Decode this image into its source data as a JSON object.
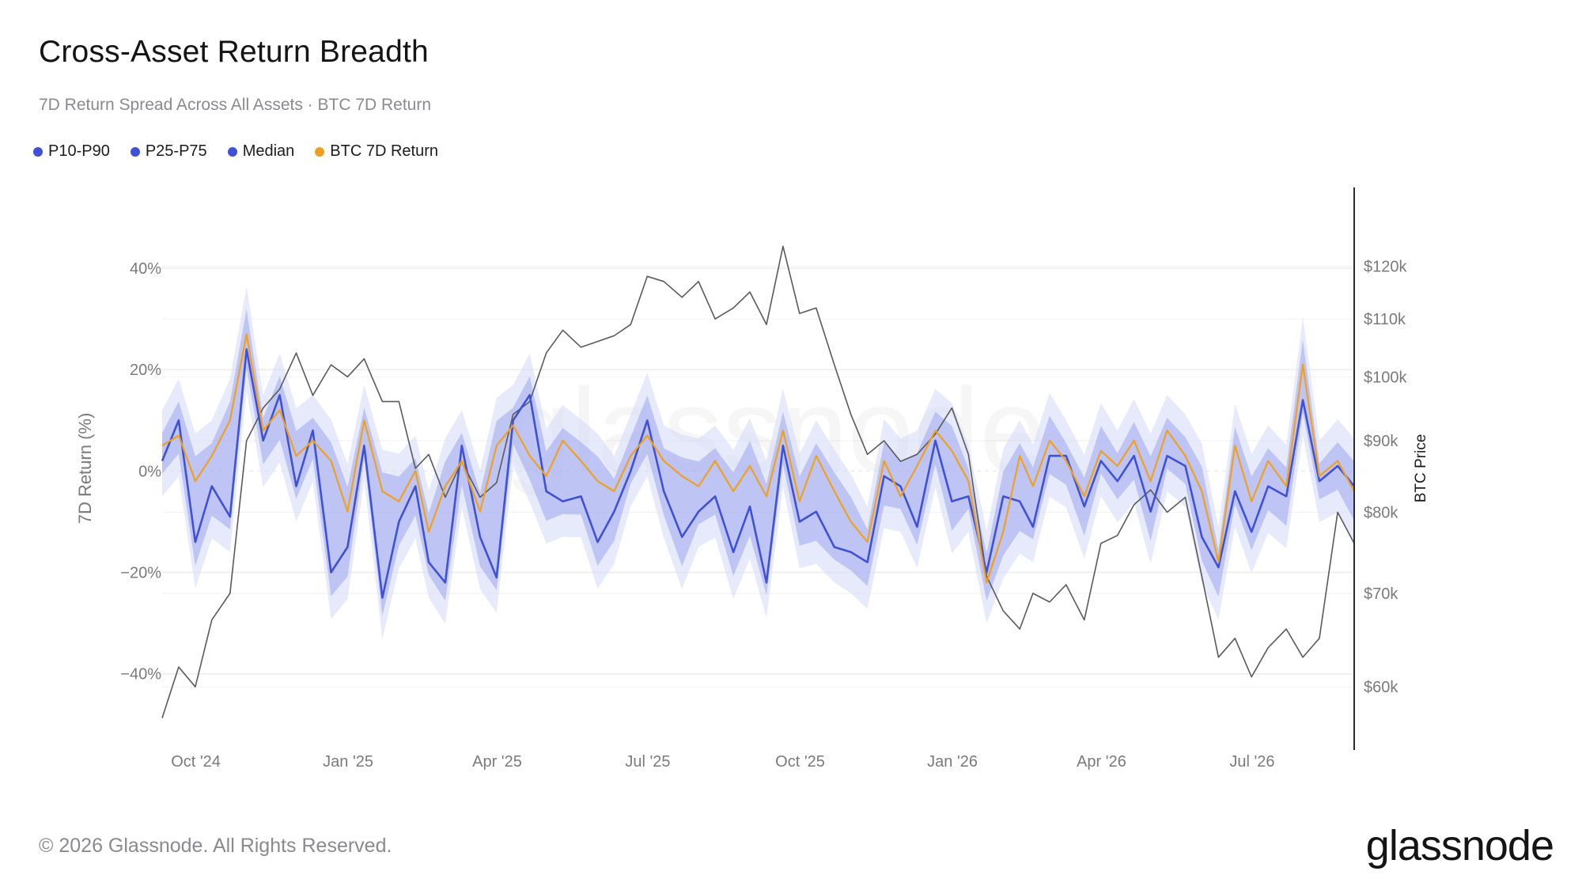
{
  "header": {
    "title": "Cross-Asset Return Breadth",
    "subtitle": "7D Return Spread Across All Assets · BTC 7D Return"
  },
  "legend": {
    "items": [
      {
        "label": "P10-P90",
        "color": "#3f51d6"
      },
      {
        "label": "P25-P75",
        "color": "#3f51d6"
      },
      {
        "label": "Median",
        "color": "#3f51d6"
      },
      {
        "label": "BTC 7D Return",
        "color": "#f0a020"
      }
    ]
  },
  "footer": {
    "copyright": "© 2026 Glassnode. All Rights Reserved.",
    "brand": "glassnode",
    "watermark": "glassnode"
  },
  "colors": {
    "median": "#3f51d6",
    "band_p25_p75": "#8b96ec",
    "band_p10_p90": "#d4d8f8",
    "btc_return": "#f0a020",
    "btc_price": "#5a5a5a",
    "grid": "#ececec"
  },
  "chart_data": {
    "type": "line",
    "title": "Cross-Asset Return Breadth",
    "subtitle": "7D Return Spread Across All Assets · BTC 7D Return",
    "grid": true,
    "legend_position": "top-left",
    "x_ticks": [
      "Oct '24",
      "Jan '25",
      "Apr '25",
      "Jul '25",
      "Oct '25",
      "Jan '26",
      "Apr '26",
      "Jul '26"
    ],
    "x_range": [
      "2024-09-25",
      "2026-09-15"
    ],
    "left_axis": {
      "label": "7D Return (%)",
      "ticks": [
        40,
        20,
        0,
        -20,
        -40
      ],
      "tick_labels": [
        "40%",
        "20%",
        "0%",
        "−20%",
        "−40%"
      ],
      "range": [
        -53,
        50
      ]
    },
    "right_axis": {
      "label": "BTC Price",
      "scale": "log",
      "ticks": [
        120000,
        110000,
        100000,
        90000,
        80000,
        70000,
        60000
      ],
      "tick_labels": [
        "$120k",
        "$110k",
        "$100k",
        "$90k",
        "$80k",
        "$70k",
        "$60k"
      ],
      "range": [
        55000,
        130000
      ]
    },
    "series": [
      {
        "name": "BTC 7D Return",
        "x": [
          "2024-09-25",
          "2024-10-05",
          "2024-10-15",
          "2024-10-25",
          "2024-11-05",
          "2024-11-15",
          "2024-11-25",
          "2024-12-05",
          "2024-12-15",
          "2024-12-25",
          "2025-01-05",
          "2025-01-15",
          "2025-01-25",
          "2025-02-05",
          "2025-02-15",
          "2025-02-25",
          "2025-03-05",
          "2025-03-15",
          "2025-03-25",
          "2025-04-05",
          "2025-04-15",
          "2025-04-25",
          "2025-05-05",
          "2025-05-15",
          "2025-05-25",
          "2025-06-05",
          "2025-06-15",
          "2025-06-25",
          "2025-07-05",
          "2025-07-15",
          "2025-07-25",
          "2025-08-05",
          "2025-08-15",
          "2025-08-25",
          "2025-09-05",
          "2025-09-15",
          "2025-09-25",
          "2025-10-05",
          "2025-10-15",
          "2025-10-25",
          "2025-11-05",
          "2025-11-15",
          "2025-11-25",
          "2025-12-05",
          "2025-12-15",
          "2025-12-25",
          "2026-01-05",
          "2026-01-15",
          "2026-01-25",
          "2026-02-05",
          "2026-02-15",
          "2026-02-25",
          "2026-03-05",
          "2026-03-15",
          "2026-03-25",
          "2026-04-05",
          "2026-04-15",
          "2026-04-25",
          "2026-05-05",
          "2026-05-15",
          "2026-05-25",
          "2026-06-05",
          "2026-06-15",
          "2026-06-25",
          "2026-07-05",
          "2026-07-15",
          "2026-07-25",
          "2026-08-05",
          "2026-08-15",
          "2026-08-25",
          "2026-09-05",
          "2026-09-15"
        ],
        "values": [
          5,
          7,
          -2,
          3,
          10,
          27,
          8,
          12,
          3,
          6,
          2,
          -8,
          10,
          -4,
          -6,
          0,
          -12,
          -3,
          2,
          -8,
          5,
          9,
          3,
          -1,
          6,
          2,
          -2,
          -4,
          3,
          7,
          2,
          -1,
          -3,
          2,
          -4,
          1,
          -5,
          8,
          -6,
          3,
          -4,
          -10,
          -14,
          2,
          -5,
          1,
          8,
          4,
          -2,
          -22,
          -12,
          3,
          -3,
          6,
          2,
          -5,
          4,
          1,
          6,
          -2,
          8,
          3,
          -4,
          -18,
          5,
          -6,
          2,
          -3,
          21,
          -1,
          2,
          -4
        ]
      },
      {
        "name": "Median",
        "x": [
          "2024-09-25",
          "2024-10-05",
          "2024-10-15",
          "2024-10-25",
          "2024-11-05",
          "2024-11-15",
          "2024-11-25",
          "2024-12-05",
          "2024-12-15",
          "2024-12-25",
          "2025-01-05",
          "2025-01-15",
          "2025-01-25",
          "2025-02-05",
          "2025-02-15",
          "2025-02-25",
          "2025-03-05",
          "2025-03-15",
          "2025-03-25",
          "2025-04-05",
          "2025-04-15",
          "2025-04-25",
          "2025-05-05",
          "2025-05-15",
          "2025-05-25",
          "2025-06-05",
          "2025-06-15",
          "2025-06-25",
          "2025-07-05",
          "2025-07-15",
          "2025-07-25",
          "2025-08-05",
          "2025-08-15",
          "2025-08-25",
          "2025-09-05",
          "2025-09-15",
          "2025-09-25",
          "2025-10-05",
          "2025-10-15",
          "2025-10-25",
          "2025-11-05",
          "2025-11-15",
          "2025-11-25",
          "2025-12-05",
          "2025-12-15",
          "2025-12-25",
          "2026-01-05",
          "2026-01-15",
          "2026-01-25",
          "2026-02-05",
          "2026-02-15",
          "2026-02-25",
          "2026-03-05",
          "2026-03-15",
          "2026-03-25",
          "2026-04-05",
          "2026-04-15",
          "2026-04-25",
          "2026-05-05",
          "2026-05-15",
          "2026-05-25",
          "2026-06-05",
          "2026-06-15",
          "2026-06-25",
          "2026-07-05",
          "2026-07-15",
          "2026-07-25",
          "2026-08-05",
          "2026-08-15",
          "2026-08-25",
          "2026-09-05",
          "2026-09-15"
        ],
        "values": [
          2,
          10,
          -14,
          -3,
          -9,
          24,
          6,
          15,
          -3,
          8,
          -20,
          -15,
          5,
          -25,
          -10,
          -3,
          -18,
          -22,
          5,
          -13,
          -21,
          10,
          15,
          -4,
          -6,
          -5,
          -14,
          -8,
          0,
          10,
          -4,
          -13,
          -8,
          -5,
          -16,
          -7,
          -22,
          5,
          -10,
          -8,
          -15,
          -16,
          -18,
          -1,
          -3,
          -11,
          6,
          -6,
          -5,
          -20,
          -5,
          -6,
          -11,
          3,
          3,
          -7,
          2,
          -2,
          3,
          -8,
          3,
          1,
          -13,
          -19,
          -4,
          -12,
          -3,
          -5,
          14,
          -2,
          1,
          -3
        ]
      },
      {
        "name": "BTC Price",
        "x": [
          "2024-09-25",
          "2024-10-05",
          "2024-10-15",
          "2024-10-25",
          "2024-11-05",
          "2024-11-15",
          "2024-11-25",
          "2024-12-05",
          "2024-12-15",
          "2024-12-25",
          "2025-01-05",
          "2025-01-15",
          "2025-01-25",
          "2025-02-05",
          "2025-02-15",
          "2025-02-25",
          "2025-03-05",
          "2025-03-15",
          "2025-03-25",
          "2025-04-05",
          "2025-04-15",
          "2025-04-25",
          "2025-05-05",
          "2025-05-15",
          "2025-05-25",
          "2025-06-05",
          "2025-06-15",
          "2025-06-25",
          "2025-07-05",
          "2025-07-15",
          "2025-07-25",
          "2025-08-05",
          "2025-08-15",
          "2025-08-25",
          "2025-09-05",
          "2025-09-15",
          "2025-09-25",
          "2025-10-05",
          "2025-10-15",
          "2025-10-25",
          "2025-11-05",
          "2025-11-15",
          "2025-11-25",
          "2025-12-05",
          "2025-12-15",
          "2025-12-25",
          "2026-01-05",
          "2026-01-15",
          "2026-01-25",
          "2026-02-05",
          "2026-02-15",
          "2026-02-25",
          "2026-03-05",
          "2026-03-15",
          "2026-03-25",
          "2026-04-05",
          "2026-04-15",
          "2026-04-25",
          "2026-05-05",
          "2026-05-15",
          "2026-05-25",
          "2026-06-05",
          "2026-06-15",
          "2026-06-25",
          "2026-07-05",
          "2026-07-15",
          "2026-07-25",
          "2026-08-05",
          "2026-08-15",
          "2026-08-25",
          "2026-09-05",
          "2026-09-15"
        ],
        "values": [
          57000,
          62000,
          60000,
          67000,
          70000,
          90000,
          95000,
          98000,
          104000,
          97000,
          102000,
          100000,
          103000,
          96000,
          96000,
          86000,
          88000,
          82000,
          87000,
          82000,
          84000,
          94000,
          96000,
          104000,
          108000,
          105000,
          106000,
          107000,
          109000,
          118000,
          117000,
          114000,
          117000,
          110000,
          112000,
          115000,
          109000,
          124000,
          111000,
          112000,
          102000,
          94000,
          88000,
          90000,
          87000,
          88000,
          91000,
          95000,
          88000,
          72000,
          68000,
          66000,
          70000,
          69000,
          71000,
          67000,
          76000,
          77000,
          81000,
          83000,
          80000,
          82000,
          72000,
          63000,
          65000,
          61000,
          64000,
          66000,
          63000,
          65000,
          80000,
          76000
        ]
      }
    ]
  }
}
